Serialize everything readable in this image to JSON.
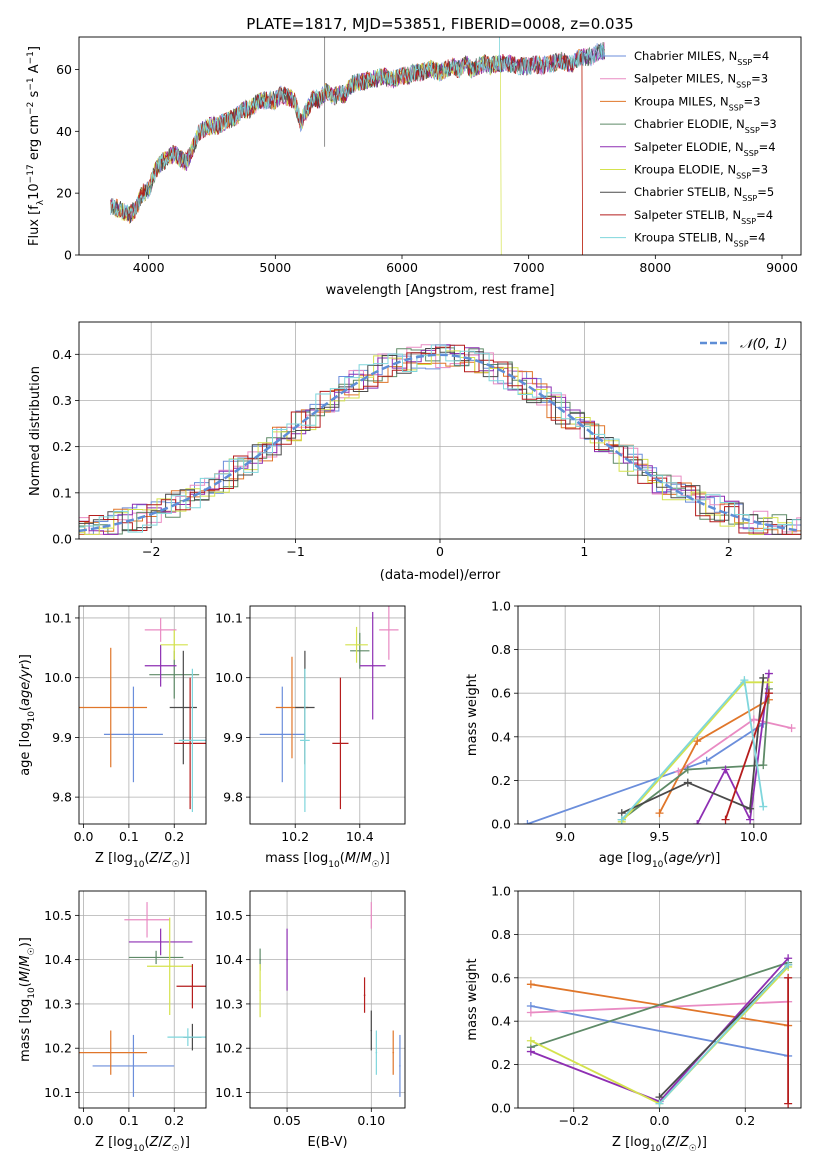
{
  "figure_title": "PLATE=1817, MJD=53851, FIBERID=0008, z=0.035",
  "model_names": [
    "Chabrier MILES",
    "Salpeter MILES",
    "Kroupa MILES",
    "Chabrier ELODIE",
    "Salpeter ELODIE",
    "Kroupa ELODIE",
    "Chabrier STELIB",
    "Salpeter STELIB",
    "Kroupa STELIB"
  ],
  "legend_nssp": [
    4,
    3,
    3,
    3,
    4,
    3,
    5,
    4,
    4
  ],
  "colors": [
    "#6b8edb",
    "#e98bc3",
    "#e0762a",
    "#5e8a67",
    "#8e2fb3",
    "#d4e24d",
    "#4a4a4a",
    "#b51d1d",
    "#7fd6dc"
  ],
  "chart_data": [
    {
      "id": "spectrum",
      "type": "line",
      "title": "PLATE=1817, MJD=53851, FIBERID=0008, z=0.035",
      "xlabel": "wavelength [Angstrom, rest frame]",
      "ylabel": "Flux [f_λ 10^-17 erg cm^-2 s^-1 A^-1]",
      "xlim": [
        3450,
        9150
      ],
      "ylim": [
        0,
        70.5
      ],
      "xticks": [
        4000,
        5000,
        6000,
        7000,
        8000,
        9000
      ],
      "yticks": [
        0,
        20,
        40,
        60
      ],
      "x": [
        3700,
        3750,
        3800,
        3850,
        3900,
        3950,
        4000,
        4050,
        4100,
        4150,
        4200,
        4250,
        4300,
        4350,
        4400,
        4450,
        4500,
        4550,
        4600,
        4650,
        4700,
        4750,
        4800,
        4850,
        4900,
        4950,
        5000,
        5050,
        5100,
        5150,
        5200,
        5250,
        5300,
        5350,
        5400,
        5450,
        5500,
        5550,
        5600,
        5650,
        5700,
        5750,
        5800,
        5850,
        5900,
        5950,
        6000,
        6050,
        6100,
        6150,
        6200,
        6250,
        6300,
        6350,
        6400,
        6450,
        6500,
        6550,
        6600,
        6650,
        6700,
        6750,
        6800,
        6850,
        6900,
        6950,
        7000,
        7050,
        7100,
        7150,
        7200,
        7250,
        7300,
        7350,
        7400,
        7450,
        7500,
        7550,
        7600
      ],
      "y": [
        16,
        15,
        14,
        13,
        15,
        20,
        21,
        27,
        30,
        31,
        33,
        31,
        30,
        35,
        40,
        41,
        42,
        42,
        43,
        44,
        45,
        47,
        47,
        49,
        50,
        50,
        50,
        52,
        51,
        50,
        43,
        47,
        51,
        50,
        53,
        51,
        52,
        52,
        55,
        56,
        56,
        57,
        57,
        58,
        57,
        57,
        58,
        58,
        59,
        59,
        60,
        60,
        59,
        60,
        61,
        60,
        62,
        60,
        61,
        62,
        61,
        62,
        62,
        62,
        61,
        61,
        61,
        62,
        61,
        62,
        62,
        63,
        62,
        62,
        64,
        64,
        64,
        66,
        66
      ],
      "series_ends": [
        7600,
        7600,
        7420,
        7600,
        7600,
        6780,
        7600,
        7420,
        7600
      ],
      "legend_position": "upper right"
    },
    {
      "id": "residuals",
      "type": "line",
      "xlabel": "(data-model)/error",
      "ylabel": "Normed distribution",
      "xlim": [
        -2.5,
        2.5
      ],
      "ylim": [
        0,
        0.47
      ],
      "xticks": [
        -2,
        -1,
        0,
        1,
        2
      ],
      "yticks": [
        0,
        0.1,
        0.2,
        0.3,
        0.4
      ],
      "grid": true,
      "legend_label": "N(0,1)",
      "legend_position": "upper right",
      "gaussian": {
        "mean": 0,
        "sigma": 1,
        "color": "#5e8ed6"
      }
    },
    {
      "id": "age-vs-Z",
      "type": "scatter",
      "xlabel": "Z [log10(Z/Z☉)]",
      "ylabel": "age [log10(age/yr)]",
      "xlim": [
        -0.01,
        0.27
      ],
      "ylim": [
        9.755,
        10.12
      ],
      "xticks": [
        0.0,
        0.1,
        0.2
      ],
      "yticks": [
        9.8,
        9.9,
        10.0,
        10.1
      ],
      "grid": true,
      "points": [
        {
          "x": 0.11,
          "xerr": 0.065,
          "y": 9.905,
          "yerr": 0.08
        },
        {
          "x": 0.17,
          "xerr": 0.035,
          "y": 10.08,
          "yerr": 0.02
        },
        {
          "x": 0.06,
          "xerr": 0.08,
          "y": 9.95,
          "yerr": 0.1
        },
        {
          "x": 0.2,
          "xerr": 0.055,
          "y": 10.005,
          "yerr": 0.04
        },
        {
          "x": 0.17,
          "xerr": 0.035,
          "y": 10.02,
          "yerr": 0.035
        },
        {
          "x": 0.2,
          "xerr": 0.03,
          "y": 10.055,
          "yerr": 0.025
        },
        {
          "x": 0.22,
          "xerr": 0.03,
          "y": 9.95,
          "yerr": 0.095
        },
        {
          "x": 0.235,
          "xerr": 0.035,
          "y": 9.89,
          "yerr": 0.11
        },
        {
          "x": 0.24,
          "xerr": 0.03,
          "y": 9.895,
          "yerr": 0.12
        }
      ]
    },
    {
      "id": "age-vs-mass",
      "type": "scatter",
      "xlabel": "mass [log10(M/M☉)]",
      "ylabel": "",
      "xlim": [
        10.06,
        10.54
      ],
      "ylim": [
        9.755,
        10.12
      ],
      "xticks": [
        10.2,
        10.4
      ],
      "yticks": [
        9.8,
        9.9,
        10.0,
        10.1
      ],
      "grid": true,
      "points": [
        {
          "x": 10.16,
          "xerr": 0.07,
          "y": 9.905,
          "yerr": 0.08
        },
        {
          "x": 10.49,
          "xerr": 0.03,
          "y": 10.08,
          "yerr": 0.05
        },
        {
          "x": 10.19,
          "xerr": 0.05,
          "y": 9.95,
          "yerr": 0.085
        },
        {
          "x": 10.4,
          "xerr": 0.03,
          "y": 10.045,
          "yerr": 0.03
        },
        {
          "x": 10.44,
          "xerr": 0.04,
          "y": 10.02,
          "yerr": 0.09
        },
        {
          "x": 10.39,
          "xerr": 0.035,
          "y": 10.055,
          "yerr": 0.03
        },
        {
          "x": 10.23,
          "xerr": 0.03,
          "y": 9.95,
          "yerr": 0.095
        },
        {
          "x": 10.34,
          "xerr": 0.025,
          "y": 9.89,
          "yerr": 0.11
        },
        {
          "x": 10.23,
          "xerr": 0.015,
          "y": 9.895,
          "yerr": 0.12
        }
      ]
    },
    {
      "id": "weight-vs-age",
      "type": "line",
      "xlabel": "age [log10(age/yr)]",
      "ylabel": "mass weight",
      "xlim": [
        8.75,
        10.25
      ],
      "ylim": [
        0,
        1.0
      ],
      "xticks": [
        9.0,
        9.5,
        10.0
      ],
      "yticks": [
        0.0,
        0.2,
        0.4,
        0.6,
        0.8,
        1.0
      ],
      "grid": true,
      "series": [
        {
          "x": [
            8.8,
            9.75,
            10.05
          ],
          "y": [
            0.0,
            0.29,
            0.46
          ]
        },
        {
          "x": [
            9.6,
            10.0,
            10.2
          ],
          "y": [
            0.24,
            0.48,
            0.44
          ]
        },
        {
          "x": [
            9.5,
            9.7,
            10.08
          ],
          "y": [
            0.05,
            0.38,
            0.57
          ]
        },
        {
          "x": [
            9.3,
            9.65,
            10.05,
            10.08
          ],
          "y": [
            0.02,
            0.25,
            0.27,
            0.62
          ]
        },
        {
          "x": [
            9.7,
            9.85,
            9.98,
            10.08
          ],
          "y": [
            0.0,
            0.25,
            0.02,
            0.69
          ]
        },
        {
          "x": [
            9.3,
            9.95,
            10.08
          ],
          "y": [
            0.01,
            0.65,
            0.65
          ]
        },
        {
          "x": [
            9.3,
            9.65,
            9.98,
            10.05
          ],
          "y": [
            0.05,
            0.19,
            0.07,
            0.67
          ]
        },
        {
          "x": [
            9.85,
            10.08
          ],
          "y": [
            0.02,
            0.6
          ]
        },
        {
          "x": [
            9.3,
            9.95,
            10.05
          ],
          "y": [
            0.02,
            0.66,
            0.08
          ]
        }
      ]
    },
    {
      "id": "mass-vs-Z",
      "type": "scatter",
      "xlabel": "Z [log10(Z/Z☉)]",
      "ylabel": "mass [log10(M/M☉)]",
      "xlim": [
        -0.01,
        0.27
      ],
      "ylim": [
        10.065,
        10.555
      ],
      "xticks": [
        0.0,
        0.1,
        0.2
      ],
      "yticks": [
        10.1,
        10.2,
        10.3,
        10.4,
        10.5
      ],
      "grid": true,
      "points": [
        {
          "x": 0.11,
          "xerr": 0.09,
          "y": 10.16,
          "yerr": 0.07
        },
        {
          "x": 0.14,
          "xerr": 0.05,
          "y": 10.49,
          "yerr": 0.04
        },
        {
          "x": 0.06,
          "xerr": 0.08,
          "y": 10.19,
          "yerr": 0.05
        },
        {
          "x": 0.16,
          "xerr": 0.06,
          "y": 10.405,
          "yerr": 0.015
        },
        {
          "x": 0.17,
          "xerr": 0.07,
          "y": 10.44,
          "yerr": 0.03
        },
        {
          "x": 0.19,
          "xerr": 0.05,
          "y": 10.385,
          "yerr": 0.11
        },
        {
          "x": 0.24,
          "xerr": 0.02,
          "y": 10.225,
          "yerr": 0.03
        },
        {
          "x": 0.24,
          "xerr": 0.035,
          "y": 10.34,
          "yerr": 0.05
        },
        {
          "x": 0.23,
          "xerr": 0.045,
          "y": 10.225,
          "yerr": 0.02
        }
      ]
    },
    {
      "id": "mass-vs-EBV",
      "type": "scatter",
      "xlabel": "E(B-V)",
      "ylabel": "",
      "xlim": [
        0.028,
        0.12
      ],
      "ylim": [
        10.065,
        10.555
      ],
      "xticks": [
        0.05,
        0.1
      ],
      "yticks": [
        10.1,
        10.2,
        10.3,
        10.4,
        10.5
      ],
      "grid": true,
      "points": [
        {
          "x": 0.117,
          "y": 10.16,
          "yerr": 0.07
        },
        {
          "x": 0.1,
          "y": 10.5,
          "yerr": 0.03
        },
        {
          "x": 0.113,
          "y": 10.19,
          "yerr": 0.05
        },
        {
          "x": 0.034,
          "y": 10.4,
          "yerr": 0.025
        },
        {
          "x": 0.05,
          "y": 10.4,
          "yerr": 0.07
        },
        {
          "x": 0.034,
          "y": 10.33,
          "yerr": 0.06
        },
        {
          "x": 0.1,
          "y": 10.24,
          "yerr": 0.045
        },
        {
          "x": 0.096,
          "y": 10.32,
          "yerr": 0.04
        },
        {
          "x": 0.103,
          "y": 10.19,
          "yerr": 0.05
        }
      ]
    },
    {
      "id": "weight-vs-Z",
      "type": "line",
      "xlabel": "Z [log10(Z/Z☉)]",
      "ylabel": "mass weight",
      "xlim": [
        -0.33,
        0.33
      ],
      "ylim": [
        0,
        1.0
      ],
      "xticks": [
        -0.2,
        0.0,
        0.2
      ],
      "yticks": [
        0.0,
        0.2,
        0.4,
        0.6,
        0.8,
        1.0
      ],
      "grid": true,
      "series": [
        {
          "x": [
            -0.3,
            0.3
          ],
          "y": [
            0.47,
            0.24
          ]
        },
        {
          "x": [
            -0.3,
            0.3
          ],
          "y": [
            0.44,
            0.49
          ]
        },
        {
          "x": [
            -0.3,
            0.3
          ],
          "y": [
            0.57,
            0.38
          ]
        },
        {
          "x": [
            -0.3,
            0.3
          ],
          "y": [
            0.28,
            0.67
          ]
        },
        {
          "x": [
            -0.3,
            0.0,
            0.3
          ],
          "y": [
            0.26,
            0.03,
            0.69
          ]
        },
        {
          "x": [
            -0.3,
            0.0,
            0.3
          ],
          "y": [
            0.31,
            0.02,
            0.65
          ]
        },
        {
          "x": [
            0.0,
            0.3
          ],
          "y": [
            0.05,
            0.66
          ]
        },
        {
          "x": [
            0.3,
            0.3
          ],
          "y": [
            0.02,
            0.6
          ]
        },
        {
          "x": [
            0.0,
            0.3
          ],
          "y": [
            0.02,
            0.66
          ]
        }
      ]
    }
  ]
}
